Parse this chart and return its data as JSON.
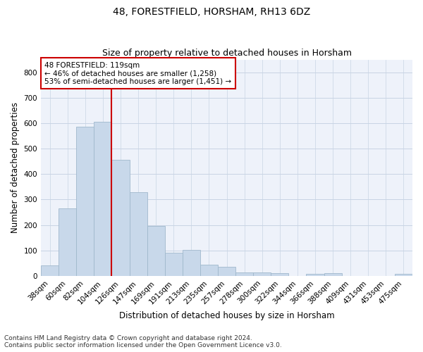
{
  "title": "48, FORESTFIELD, HORSHAM, RH13 6DZ",
  "subtitle": "Size of property relative to detached houses in Horsham",
  "xlabel": "Distribution of detached houses by size in Horsham",
  "ylabel": "Number of detached properties",
  "categories": [
    "38sqm",
    "60sqm",
    "82sqm",
    "104sqm",
    "126sqm",
    "147sqm",
    "169sqm",
    "191sqm",
    "213sqm",
    "235sqm",
    "257sqm",
    "278sqm",
    "300sqm",
    "322sqm",
    "344sqm",
    "366sqm",
    "388sqm",
    "409sqm",
    "431sqm",
    "453sqm",
    "475sqm"
  ],
  "values": [
    40,
    265,
    585,
    605,
    455,
    328,
    195,
    90,
    103,
    43,
    37,
    13,
    15,
    10,
    0,
    8,
    10,
    0,
    0,
    0,
    7
  ],
  "bar_color": "#c8d8ea",
  "bar_edge_color": "#a0b8cc",
  "bar_linewidth": 0.6,
  "property_line_x": 3.5,
  "property_line_color": "#cc0000",
  "annotation_line1": "48 FORESTFIELD: 119sqm",
  "annotation_line2": "← 46% of detached houses are smaller (1,258)",
  "annotation_line3": "53% of semi-detached houses are larger (1,451) →",
  "annotation_box_color": "#ffffff",
  "annotation_box_edge_color": "#cc0000",
  "ylim": [
    0,
    850
  ],
  "yticks": [
    0,
    100,
    200,
    300,
    400,
    500,
    600,
    700,
    800
  ],
  "grid_color": "#c8d4e4",
  "background_color": "#eef2fa",
  "footer_line1": "Contains HM Land Registry data © Crown copyright and database right 2024.",
  "footer_line2": "Contains public sector information licensed under the Open Government Licence v3.0.",
  "title_fontsize": 10,
  "subtitle_fontsize": 9,
  "axis_label_fontsize": 8.5,
  "tick_fontsize": 7.5,
  "annotation_fontsize": 7.5,
  "footer_fontsize": 6.5
}
